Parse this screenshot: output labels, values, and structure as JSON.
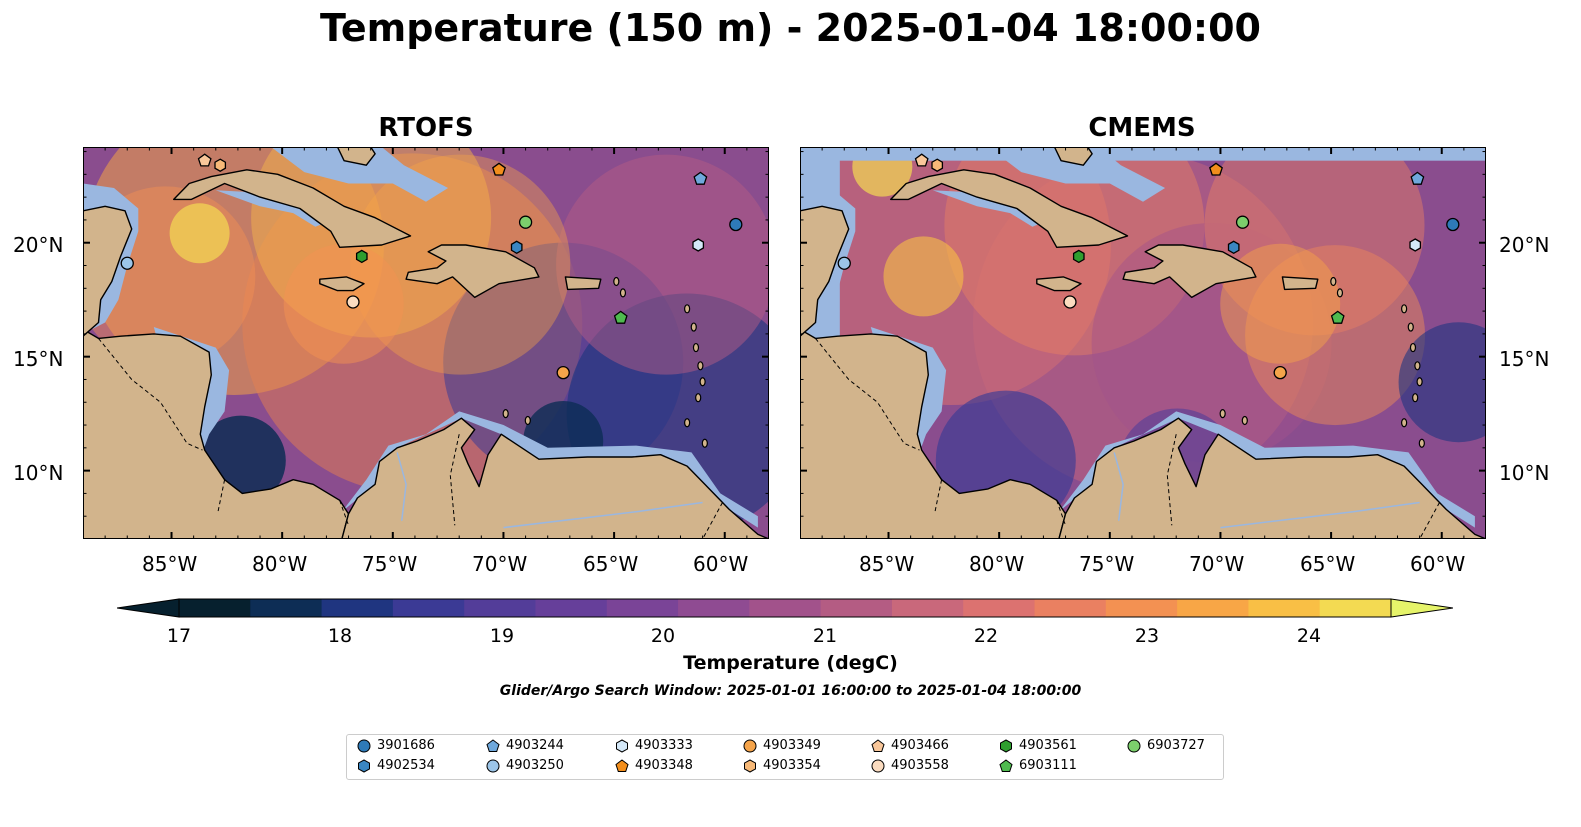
{
  "title": "Temperature (150 m) - 2025-01-04 18:00:00",
  "panels": [
    {
      "title": "RTOFS"
    },
    {
      "title": "CMEMS"
    }
  ],
  "axes": {
    "lon_ticks": [
      "85°W",
      "80°W",
      "75°W",
      "70°W",
      "65°W",
      "60°W"
    ],
    "lat_ticks": [
      "20°N",
      "15°N",
      "10°N"
    ]
  },
  "colorbar": {
    "label": "Temperature (degC)",
    "ticks": [
      "17",
      "18",
      "19",
      "20",
      "21",
      "22",
      "23",
      "24"
    ],
    "min": 17,
    "max": 24.5,
    "extend": "both",
    "colors": [
      "#06202e",
      "#0d2d55",
      "#1f3580",
      "#3b3a95",
      "#533d99",
      "#663f9a",
      "#7a4497",
      "#8f4b92",
      "#a2528b",
      "#b45c83",
      "#c9687b",
      "#dc7270",
      "#ea8061",
      "#f39152",
      "#f8a646",
      "#f9bf45",
      "#f3da52"
    ],
    "under_color": "#06202e",
    "over_color": "#e6f46a"
  },
  "search_window": "Glider/Argo Search Window: 2025-01-01 16:00:00 to 2025-01-04 18:00:00",
  "legend": [
    {
      "id": "3901686",
      "marker": "circle",
      "color": "#2e7ab8"
    },
    {
      "id": "4902534",
      "marker": "hexagon",
      "color": "#3a86c2"
    },
    {
      "id": "4903244",
      "marker": "pentagon",
      "color": "#6fa8dc"
    },
    {
      "id": "4903250",
      "marker": "circle",
      "color": "#9cc5e8"
    },
    {
      "id": "4903333",
      "marker": "hexagon",
      "color": "#d4e8f8"
    },
    {
      "id": "4903348",
      "marker": "pentagon",
      "color": "#f28e1c"
    },
    {
      "id": "4903349",
      "marker": "circle",
      "color": "#f5a44a"
    },
    {
      "id": "4903354",
      "marker": "hexagon",
      "color": "#f7b978"
    },
    {
      "id": "4903466",
      "marker": "pentagon",
      "color": "#f9c79a"
    },
    {
      "id": "4903558",
      "marker": "circle",
      "color": "#fbdcc0"
    },
    {
      "id": "4903561",
      "marker": "hexagon",
      "color": "#2f9e2f"
    },
    {
      "id": "6903111",
      "marker": "pentagon",
      "color": "#4fba4f"
    },
    {
      "id": "6903727",
      "marker": "circle",
      "color": "#7ccf6c"
    }
  ],
  "float_positions": [
    {
      "id": "3901686",
      "lon": -59.5,
      "lat": 20.8
    },
    {
      "id": "4902534",
      "lon": -69.4,
      "lat": 19.8
    },
    {
      "id": "4903244",
      "lon": -61.1,
      "lat": 22.8
    },
    {
      "id": "4903250",
      "lon": -87.0,
      "lat": 19.1
    },
    {
      "id": "4903333",
      "lon": -61.2,
      "lat": 19.9
    },
    {
      "id": "4903348",
      "lon": -70.2,
      "lat": 23.2
    },
    {
      "id": "4903349",
      "lon": -67.3,
      "lat": 14.3
    },
    {
      "id": "4903354",
      "lon": -82.8,
      "lat": 23.4
    },
    {
      "id": "4903466",
      "lon": -83.5,
      "lat": 23.6
    },
    {
      "id": "4903558",
      "lon": -76.8,
      "lat": 17.4
    },
    {
      "id": "4903561",
      "lon": -76.4,
      "lat": 19.4
    },
    {
      "id": "6903111",
      "lon": -64.7,
      "lat": 16.7
    },
    {
      "id": "6903727",
      "lon": -69.0,
      "lat": 20.9
    }
  ],
  "map_colors": {
    "land": "#d2b48c",
    "shallow": "#9ab7e0",
    "deep": "#06202e"
  }
}
